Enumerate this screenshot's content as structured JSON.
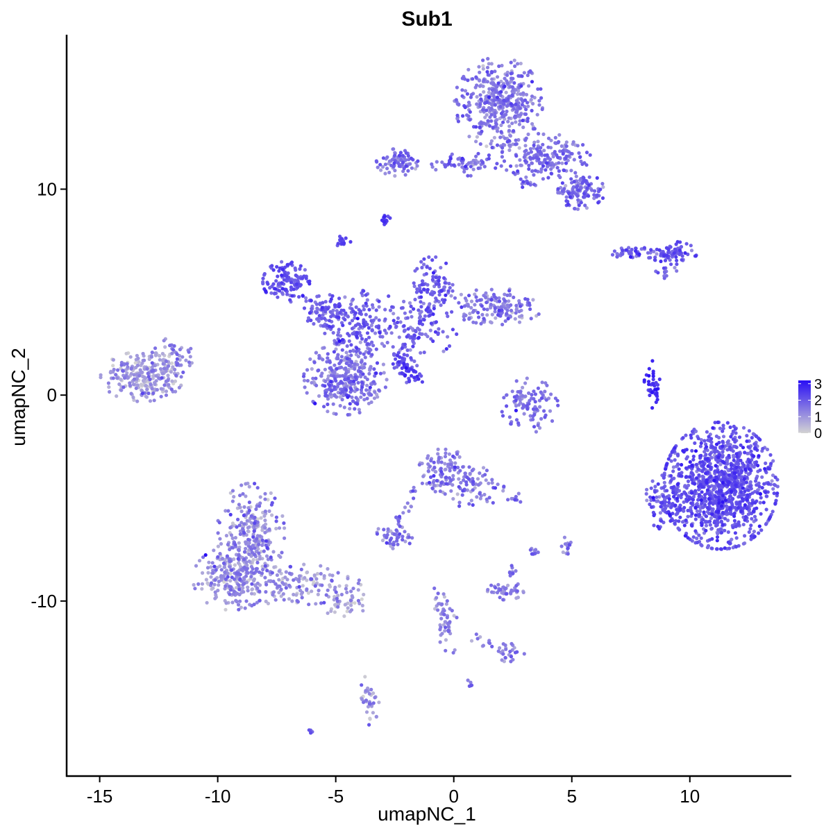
{
  "chart_data": {
    "type": "scatter",
    "title": "Sub1",
    "xlabel": "umapNC_1",
    "ylabel": "umapNC_2",
    "xlim": [
      -16.4,
      14.3
    ],
    "ylim": [
      -18.5,
      17.5
    ],
    "xticks": [
      -15,
      -10,
      -5,
      0,
      5,
      10
    ],
    "xtick_labels": [
      "-15",
      "-10",
      "-5",
      "0",
      "5",
      "10"
    ],
    "yticks": [
      -10,
      0,
      10
    ],
    "ytick_labels": [
      "-10",
      "0",
      "10"
    ],
    "grid": false,
    "legend": {
      "position": "right",
      "type": "colorbar",
      "labels": [
        "3",
        "2",
        "1",
        "0"
      ],
      "values": [
        3,
        2,
        1,
        0
      ],
      "range": [
        0,
        3.2
      ]
    },
    "colors": {
      "low": "#d3d3d3",
      "high": "#2a0ff5"
    },
    "clusters": [
      {
        "cx": 1.9,
        "cy": 14.2,
        "sx": 0.85,
        "sy": 1.0,
        "n": 420,
        "mean": 1.4,
        "sd": 0.45
      },
      {
        "cx": 3.8,
        "cy": 11.6,
        "sx": 0.9,
        "sy": 0.5,
        "n": 190,
        "mean": 1.5,
        "sd": 0.4
      },
      {
        "cx": 5.4,
        "cy": 9.9,
        "sx": 0.45,
        "sy": 0.4,
        "n": 120,
        "mean": 1.6,
        "sd": 0.4
      },
      {
        "cx": -2.4,
        "cy": 11.3,
        "sx": 0.4,
        "sy": 0.3,
        "n": 80,
        "mean": 1.6,
        "sd": 0.4
      },
      {
        "cx": 0.6,
        "cy": 11.2,
        "sx": 0.7,
        "sy": 0.25,
        "n": 60,
        "mean": 1.6,
        "sd": 0.4
      },
      {
        "cx": -2.9,
        "cy": 8.5,
        "sx": 0.12,
        "sy": 0.1,
        "n": 15,
        "mean": 2.3,
        "sd": 0.3
      },
      {
        "cx": -4.7,
        "cy": 7.4,
        "sx": 0.15,
        "sy": 0.15,
        "n": 18,
        "mean": 2.2,
        "sd": 0.3
      },
      {
        "cx": -7.1,
        "cy": 5.5,
        "sx": 0.45,
        "sy": 0.45,
        "n": 130,
        "mean": 2.0,
        "sd": 0.35
      },
      {
        "cx": -5.2,
        "cy": 4.1,
        "sx": 0.6,
        "sy": 0.35,
        "n": 90,
        "mean": 1.8,
        "sd": 0.4
      },
      {
        "cx": -4.6,
        "cy": 0.8,
        "sx": 0.8,
        "sy": 0.8,
        "n": 320,
        "mean": 1.5,
        "sd": 0.45
      },
      {
        "cx": -3.8,
        "cy": 2.8,
        "sx": 0.5,
        "sy": 0.7,
        "n": 80,
        "mean": 1.7,
        "sd": 0.4
      },
      {
        "cx": -1.8,
        "cy": 3.4,
        "sx": 0.9,
        "sy": 0.8,
        "n": 110,
        "mean": 1.8,
        "sd": 0.4
      },
      {
        "cx": -0.9,
        "cy": 5.4,
        "sx": 0.4,
        "sy": 0.6,
        "n": 90,
        "mean": 1.9,
        "sd": 0.4
      },
      {
        "cx": 1.8,
        "cy": 4.3,
        "sx": 0.9,
        "sy": 0.4,
        "n": 150,
        "mean": 1.4,
        "sd": 0.45
      },
      {
        "cx": -2.0,
        "cy": 1.2,
        "sx": 0.35,
        "sy": 0.35,
        "n": 30,
        "mean": 2.1,
        "sd": 0.3
      },
      {
        "cx": 3.2,
        "cy": -0.5,
        "sx": 0.55,
        "sy": 0.6,
        "n": 100,
        "mean": 1.5,
        "sd": 0.45
      },
      {
        "cx": 7.7,
        "cy": 6.9,
        "sx": 0.55,
        "sy": 0.12,
        "n": 50,
        "mean": 1.8,
        "sd": 0.4
      },
      {
        "cx": 9.3,
        "cy": 6.9,
        "sx": 0.45,
        "sy": 0.25,
        "n": 70,
        "mean": 2.0,
        "sd": 0.35
      },
      {
        "cx": 8.4,
        "cy": 0.5,
        "sx": 0.15,
        "sy": 0.55,
        "n": 40,
        "mean": 2.6,
        "sd": 0.3
      },
      {
        "cx": 11.3,
        "cy": -4.4,
        "sx": 1.1,
        "sy": 1.4,
        "n": 1100,
        "mean": 2.0,
        "sd": 0.4
      },
      {
        "cx": 8.9,
        "cy": -5.2,
        "sx": 0.4,
        "sy": 0.6,
        "n": 90,
        "mean": 1.9,
        "sd": 0.4
      },
      {
        "cx": -0.4,
        "cy": -3.7,
        "sx": 0.5,
        "sy": 0.5,
        "n": 110,
        "mean": 1.4,
        "sd": 0.45
      },
      {
        "cx": 0.8,
        "cy": -4.4,
        "sx": 0.6,
        "sy": 0.5,
        "n": 70,
        "mean": 1.5,
        "sd": 0.45
      },
      {
        "cx": -2.6,
        "cy": -6.9,
        "sx": 0.4,
        "sy": 0.25,
        "n": 45,
        "mean": 1.4,
        "sd": 0.45
      },
      {
        "cx": -8.6,
        "cy": -6.7,
        "sx": 0.65,
        "sy": 1.1,
        "n": 260,
        "mean": 1.1,
        "sd": 0.5
      },
      {
        "cx": -9.4,
        "cy": -8.9,
        "sx": 0.75,
        "sy": 0.7,
        "n": 210,
        "mean": 1.1,
        "sd": 0.5
      },
      {
        "cx": -6.8,
        "cy": -9.2,
        "sx": 1.3,
        "sy": 0.45,
        "n": 160,
        "mean": 1.0,
        "sd": 0.5
      },
      {
        "cx": -4.6,
        "cy": -10.1,
        "sx": 0.5,
        "sy": 0.3,
        "n": 40,
        "mean": 0.9,
        "sd": 0.5
      },
      {
        "cx": -13.2,
        "cy": 0.9,
        "sx": 0.8,
        "sy": 0.55,
        "n": 260,
        "mean": 0.9,
        "sd": 0.5
      },
      {
        "cx": -11.9,
        "cy": 1.7,
        "sx": 0.4,
        "sy": 0.5,
        "n": 50,
        "mean": 1.0,
        "sd": 0.5
      },
      {
        "cx": 2.2,
        "cy": -9.5,
        "sx": 0.35,
        "sy": 0.2,
        "n": 40,
        "mean": 1.4,
        "sd": 0.45
      },
      {
        "cx": 2.3,
        "cy": -12.5,
        "sx": 0.35,
        "sy": 0.2,
        "n": 25,
        "mean": 1.4,
        "sd": 0.45
      },
      {
        "cx": -0.3,
        "cy": -11.0,
        "sx": 0.25,
        "sy": 0.8,
        "n": 35,
        "mean": 1.2,
        "sd": 0.45
      },
      {
        "cx": -3.6,
        "cy": -14.8,
        "sx": 0.2,
        "sy": 0.55,
        "n": 35,
        "mean": 1.1,
        "sd": 0.45
      },
      {
        "cx": 4.8,
        "cy": -7.3,
        "sx": 0.15,
        "sy": 0.25,
        "n": 15,
        "mean": 1.4,
        "sd": 0.45
      },
      {
        "cx": 3.4,
        "cy": -7.6,
        "sx": 0.1,
        "sy": 0.2,
        "n": 10,
        "mean": 1.5,
        "sd": 0.45
      },
      {
        "cx": 2.7,
        "cy": -5.0,
        "sx": 0.2,
        "sy": 0.1,
        "n": 8,
        "mean": 1.6,
        "sd": 0.4
      },
      {
        "cx": 2.5,
        "cy": -8.6,
        "sx": 0.1,
        "sy": 0.15,
        "n": 10,
        "mean": 1.5,
        "sd": 0.4
      },
      {
        "cx": 9.0,
        "cy": 6.0,
        "sx": 0.2,
        "sy": 0.15,
        "n": 12,
        "mean": 1.7,
        "sd": 0.4
      },
      {
        "cx": 3.1,
        "cy": 10.3,
        "sx": 0.25,
        "sy": 0.1,
        "n": 12,
        "mean": 1.7,
        "sd": 0.4
      },
      {
        "cx": 0.6,
        "cy": -14.0,
        "sx": 0.08,
        "sy": 0.1,
        "n": 5,
        "mean": 1.8,
        "sd": 0.3
      },
      {
        "cx": -6.1,
        "cy": -16.3,
        "sx": 0.08,
        "sy": 0.08,
        "n": 5,
        "mean": 1.9,
        "sd": 0.3
      }
    ],
    "streaks": [
      {
        "from": [
          -2.5,
          1.8
        ],
        "to": [
          -1.3,
          0.7
        ],
        "n": 30,
        "mean": 2.4,
        "sd": 0.3
      },
      {
        "from": [
          -2.5,
          1.8
        ],
        "to": [
          -0.8,
          4.5
        ],
        "n": 40,
        "mean": 1.8,
        "sd": 0.4
      },
      {
        "from": [
          -4.8,
          2.5
        ],
        "to": [
          -6.2,
          4.6
        ],
        "n": 35,
        "mean": 1.8,
        "sd": 0.4
      },
      {
        "from": [
          -1.7,
          -4.5
        ],
        "to": [
          -2.6,
          -6.8
        ],
        "n": 20,
        "mean": 1.4,
        "sd": 0.45
      },
      {
        "from": [
          -0.9,
          -9.2
        ],
        "to": [
          -0.2,
          -11.6
        ],
        "n": 20,
        "mean": 1.2,
        "sd": 0.45
      },
      {
        "from": [
          0.6,
          -11.8
        ],
        "to": [
          2.3,
          -12.4
        ],
        "n": 12,
        "mean": 1.3,
        "sd": 0.45
      },
      {
        "from": [
          -3.7,
          5.2
        ],
        "to": [
          -4.0,
          3.3
        ],
        "n": 20,
        "mean": 1.9,
        "sd": 0.4
      }
    ]
  }
}
